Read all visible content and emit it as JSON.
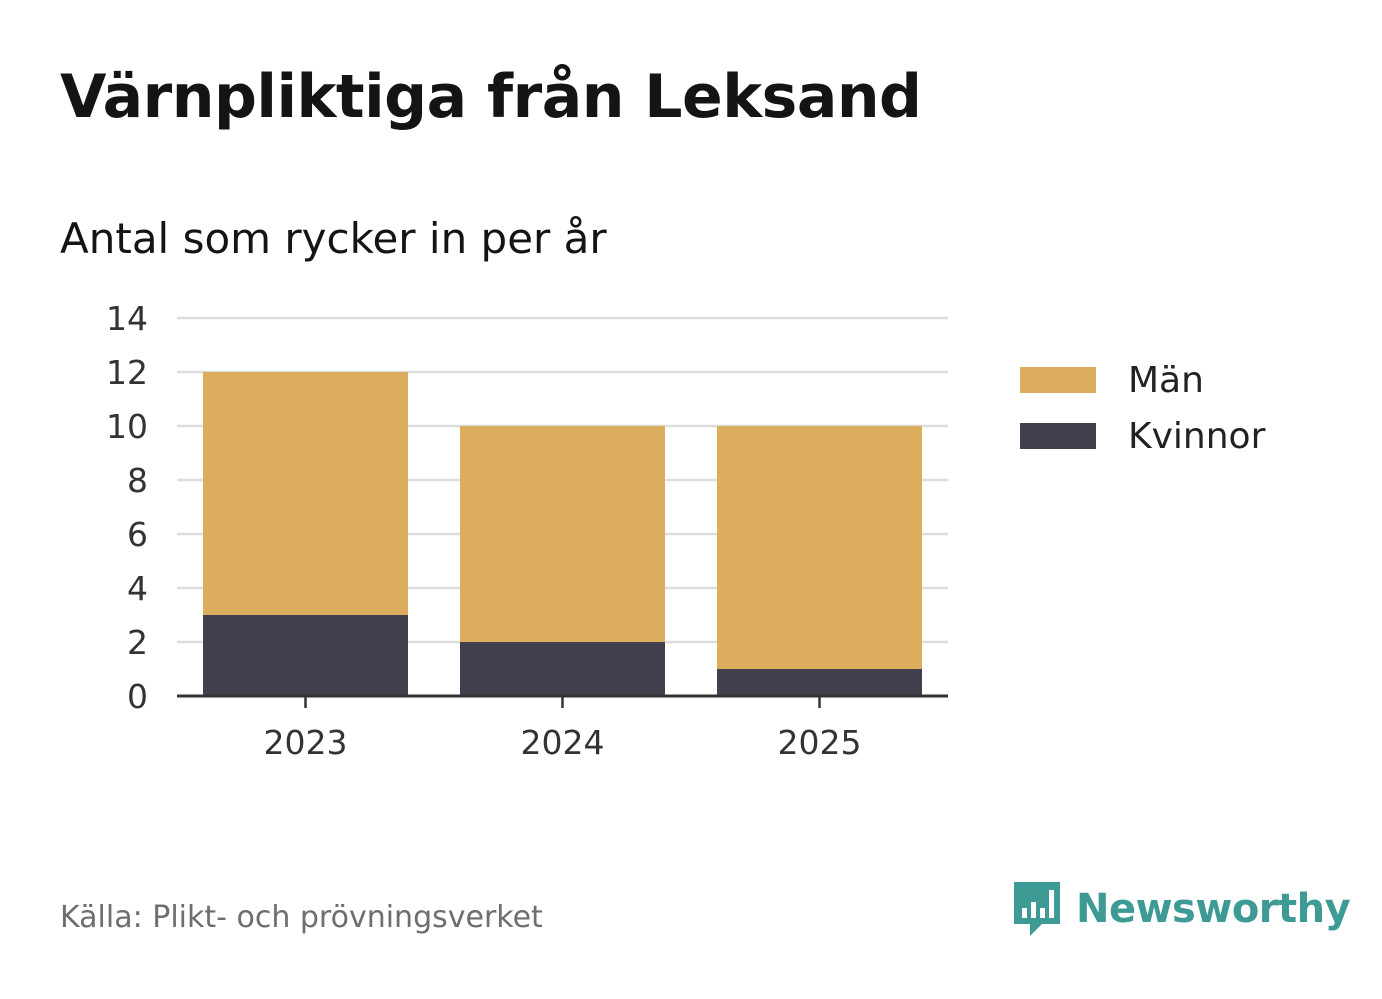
{
  "title": "Värnpliktiga från Leksand",
  "subtitle": "Antal som rycker in per år",
  "source": "Källa: Plikt- och prövningsverket",
  "brand": {
    "name": "Newsworthy",
    "logo_icon": "newsworthy-chart-logo-icon",
    "color": "#3e9a94"
  },
  "colors": {
    "man": "#dbad5c",
    "kvinnor": "#42404e",
    "grid": "#dddddd",
    "axis": "#333333"
  },
  "legend": [
    {
      "label": "Män",
      "color": "#dbad5c"
    },
    {
      "label": "Kvinnor",
      "color": "#42404e"
    }
  ],
  "chart_data": {
    "type": "bar",
    "stacked": true,
    "categories": [
      "2023",
      "2024",
      "2025"
    ],
    "series": [
      {
        "name": "Kvinnor",
        "values": [
          3,
          2,
          1
        ],
        "color": "#42404e"
      },
      {
        "name": "Män",
        "values": [
          9,
          8,
          9
        ],
        "color": "#dbad5c"
      }
    ],
    "ylim": [
      0,
      14
    ],
    "yticks": [
      0,
      2,
      4,
      6,
      8,
      10,
      12,
      14
    ],
    "title": "Värnpliktiga från Leksand",
    "subtitle": "Antal som rycker in per år",
    "xlabel": "",
    "ylabel": "",
    "grid": true,
    "legend_position": "right"
  }
}
